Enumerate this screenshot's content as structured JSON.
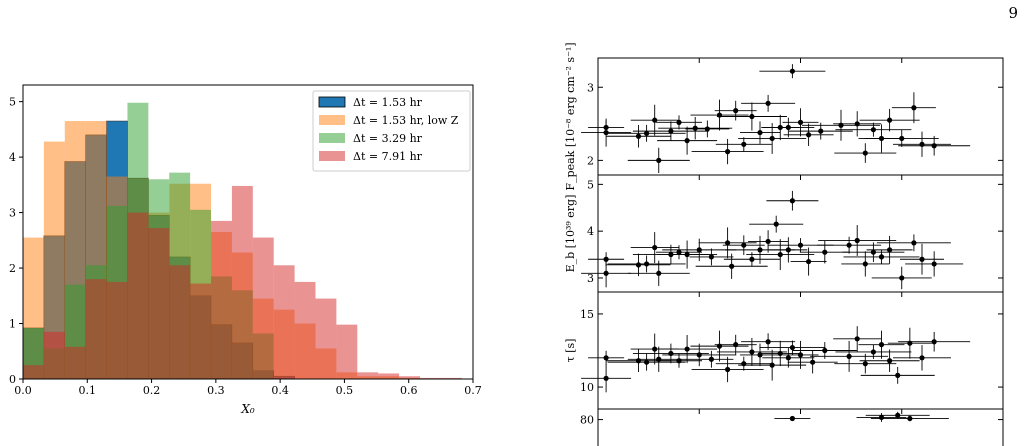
{
  "page_number": "9",
  "chart_data": [
    {
      "type": "histogram",
      "xlabel": "X₀",
      "ylabel": "",
      "xlim": [
        0.0,
        0.7
      ],
      "ylim": [
        0,
        5.3
      ],
      "xticks": [
        0.0,
        0.1,
        0.2,
        0.3,
        0.4,
        0.5,
        0.6,
        0.7
      ],
      "yticks": [
        0,
        1,
        2,
        3,
        4,
        5
      ],
      "bin_width": 0.0325,
      "legend_position": "top-right",
      "series": [
        {
          "name": "Δt = 1.53 hr",
          "color": "#1f77b4",
          "alpha": 1.0,
          "edges": [
            0.0,
            0.0325,
            0.065,
            0.0975,
            0.13,
            0.1625,
            0.195,
            0.2275,
            0.26,
            0.2925,
            0.325,
            0.3575,
            0.39,
            0.4225
          ],
          "values": [
            0.92,
            2.58,
            3.92,
            4.4,
            4.65,
            3.62,
            2.95,
            2.2,
            1.5,
            0.98,
            0.65,
            0.15,
            0.05
          ]
        },
        {
          "name": "Δt = 1.53 hr, low Z",
          "color": "#ff7f0e",
          "alpha": 0.5,
          "edges": [
            0.0,
            0.0325,
            0.065,
            0.0975,
            0.13,
            0.1625,
            0.195,
            0.2275,
            0.26,
            0.2925,
            0.325,
            0.3575,
            0.39,
            0.4225,
            0.455,
            0.4875,
            0.52,
            0.5525,
            0.585,
            0.6175
          ],
          "values": [
            2.55,
            4.28,
            4.65,
            4.65,
            3.65,
            3.62,
            3.0,
            3.52,
            3.52,
            2.65,
            2.28,
            1.45,
            1.25,
            1.0,
            0.55,
            0.12,
            0.05,
            0.05,
            0.02
          ]
        },
        {
          "name": "Δt = 3.29 hr",
          "color": "#2ca02c",
          "alpha": 0.5,
          "edges": [
            0.0,
            0.0325,
            0.065,
            0.0975,
            0.13,
            0.1625,
            0.195,
            0.2275,
            0.26,
            0.2925,
            0.325,
            0.3575,
            0.39
          ],
          "values": [
            0.92,
            0.55,
            1.7,
            2.05,
            3.12,
            4.98,
            3.6,
            3.72,
            3.05,
            1.85,
            1.6,
            0.82
          ]
        },
        {
          "name": "Δt = 7.91 hr",
          "color": "#d62728",
          "alpha": 0.5,
          "edges": [
            0.0,
            0.0325,
            0.065,
            0.0975,
            0.13,
            0.1625,
            0.195,
            0.2275,
            0.26,
            0.2925,
            0.325,
            0.3575,
            0.39,
            0.4225,
            0.455,
            0.4875,
            0.52,
            0.5525,
            0.585,
            0.6175,
            0.65,
            0.6825
          ],
          "values": [
            0.25,
            0.85,
            0.58,
            1.8,
            1.75,
            3.0,
            2.72,
            2.05,
            1.72,
            2.85,
            3.48,
            2.55,
            2.05,
            1.75,
            1.45,
            0.98,
            0.12,
            0.1,
            0.05,
            0.02,
            0.02
          ]
        }
      ]
    },
    {
      "type": "scatter",
      "error_bars": true,
      "x_label": "",
      "panels": [
        {
          "ylabel": "F_peak [10⁻⁸ erg cm⁻² s⁻¹]",
          "ylim": [
            1.8,
            3.4
          ],
          "yticks": [
            2,
            3
          ],
          "points": [
            {
              "x": 0.02,
              "y": 2.45
            },
            {
              "x": 0.02,
              "y": 2.38
            },
            {
              "x": 0.1,
              "y": 2.33
            },
            {
              "x": 0.12,
              "y": 2.37
            },
            {
              "x": 0.14,
              "y": 2.55
            },
            {
              "x": 0.15,
              "y": 2.0
            },
            {
              "x": 0.18,
              "y": 2.4
            },
            {
              "x": 0.2,
              "y": 2.52
            },
            {
              "x": 0.22,
              "y": 2.27
            },
            {
              "x": 0.24,
              "y": 2.44
            },
            {
              "x": 0.27,
              "y": 2.43
            },
            {
              "x": 0.3,
              "y": 2.62
            },
            {
              "x": 0.32,
              "y": 2.12
            },
            {
              "x": 0.34,
              "y": 2.68
            },
            {
              "x": 0.36,
              "y": 2.22
            },
            {
              "x": 0.38,
              "y": 2.6
            },
            {
              "x": 0.4,
              "y": 2.38
            },
            {
              "x": 0.42,
              "y": 2.78
            },
            {
              "x": 0.43,
              "y": 2.3
            },
            {
              "x": 0.45,
              "y": 2.45
            },
            {
              "x": 0.47,
              "y": 2.45
            },
            {
              "x": 0.48,
              "y": 3.22
            },
            {
              "x": 0.5,
              "y": 2.52
            },
            {
              "x": 0.52,
              "y": 2.35
            },
            {
              "x": 0.55,
              "y": 2.4
            },
            {
              "x": 0.6,
              "y": 2.48
            },
            {
              "x": 0.64,
              "y": 2.5
            },
            {
              "x": 0.66,
              "y": 2.1
            },
            {
              "x": 0.68,
              "y": 2.42
            },
            {
              "x": 0.7,
              "y": 2.3
            },
            {
              "x": 0.72,
              "y": 2.55
            },
            {
              "x": 0.75,
              "y": 2.3
            },
            {
              "x": 0.78,
              "y": 2.72
            },
            {
              "x": 0.8,
              "y": 2.22
            },
            {
              "x": 0.83,
              "y": 2.2
            }
          ]
        },
        {
          "ylabel": "E_b [10³⁹ erg]",
          "ylim": [
            2.7,
            5.2
          ],
          "yticks": [
            3,
            4,
            5
          ],
          "points": [
            {
              "x": 0.02,
              "y": 3.4
            },
            {
              "x": 0.02,
              "y": 3.1
            },
            {
              "x": 0.1,
              "y": 3.28
            },
            {
              "x": 0.12,
              "y": 3.3
            },
            {
              "x": 0.14,
              "y": 3.65
            },
            {
              "x": 0.15,
              "y": 3.1
            },
            {
              "x": 0.18,
              "y": 3.5
            },
            {
              "x": 0.2,
              "y": 3.55
            },
            {
              "x": 0.22,
              "y": 3.5
            },
            {
              "x": 0.25,
              "y": 3.6
            },
            {
              "x": 0.28,
              "y": 3.45
            },
            {
              "x": 0.32,
              "y": 3.75
            },
            {
              "x": 0.33,
              "y": 3.25
            },
            {
              "x": 0.36,
              "y": 3.7
            },
            {
              "x": 0.38,
              "y": 3.4
            },
            {
              "x": 0.4,
              "y": 3.6
            },
            {
              "x": 0.42,
              "y": 3.78
            },
            {
              "x": 0.44,
              "y": 4.15
            },
            {
              "x": 0.45,
              "y": 3.5
            },
            {
              "x": 0.47,
              "y": 3.6
            },
            {
              "x": 0.48,
              "y": 4.65
            },
            {
              "x": 0.5,
              "y": 3.7
            },
            {
              "x": 0.52,
              "y": 3.35
            },
            {
              "x": 0.56,
              "y": 3.55
            },
            {
              "x": 0.62,
              "y": 3.7
            },
            {
              "x": 0.64,
              "y": 3.8
            },
            {
              "x": 0.66,
              "y": 3.3
            },
            {
              "x": 0.68,
              "y": 3.55
            },
            {
              "x": 0.7,
              "y": 3.45
            },
            {
              "x": 0.72,
              "y": 3.6
            },
            {
              "x": 0.75,
              "y": 3.0
            },
            {
              "x": 0.78,
              "y": 3.75
            },
            {
              "x": 0.8,
              "y": 3.4
            },
            {
              "x": 0.83,
              "y": 3.3
            }
          ]
        },
        {
          "ylabel": "τ [s]",
          "ylim": [
            8.5,
            16.5
          ],
          "yticks": [
            10,
            15
          ],
          "points": [
            {
              "x": 0.02,
              "y": 12.0
            },
            {
              "x": 0.02,
              "y": 10.6
            },
            {
              "x": 0.1,
              "y": 11.8
            },
            {
              "x": 0.12,
              "y": 11.7
            },
            {
              "x": 0.14,
              "y": 12.6
            },
            {
              "x": 0.15,
              "y": 11.9
            },
            {
              "x": 0.18,
              "y": 12.3
            },
            {
              "x": 0.2,
              "y": 11.8
            },
            {
              "x": 0.22,
              "y": 12.6
            },
            {
              "x": 0.25,
              "y": 12.2
            },
            {
              "x": 0.28,
              "y": 11.9
            },
            {
              "x": 0.3,
              "y": 12.8
            },
            {
              "x": 0.32,
              "y": 11.2
            },
            {
              "x": 0.34,
              "y": 12.9
            },
            {
              "x": 0.36,
              "y": 11.6
            },
            {
              "x": 0.38,
              "y": 12.4
            },
            {
              "x": 0.4,
              "y": 12.2
            },
            {
              "x": 0.42,
              "y": 13.1
            },
            {
              "x": 0.43,
              "y": 11.5
            },
            {
              "x": 0.45,
              "y": 12.3
            },
            {
              "x": 0.47,
              "y": 12.0
            },
            {
              "x": 0.48,
              "y": 12.7
            },
            {
              "x": 0.5,
              "y": 12.2
            },
            {
              "x": 0.53,
              "y": 11.7
            },
            {
              "x": 0.56,
              "y": 12.5
            },
            {
              "x": 0.62,
              "y": 12.1
            },
            {
              "x": 0.64,
              "y": 13.3
            },
            {
              "x": 0.66,
              "y": 11.6
            },
            {
              "x": 0.68,
              "y": 12.4
            },
            {
              "x": 0.7,
              "y": 12.9
            },
            {
              "x": 0.72,
              "y": 11.8
            },
            {
              "x": 0.74,
              "y": 10.8
            },
            {
              "x": 0.77,
              "y": 13.0
            },
            {
              "x": 0.8,
              "y": 12.0
            },
            {
              "x": 0.83,
              "y": 13.1
            }
          ]
        },
        {
          "ylabel": "",
          "ylim": [
            55,
            90
          ],
          "yticks": [
            80
          ],
          "points": [
            {
              "x": 0.48,
              "y": 81
            },
            {
              "x": 0.7,
              "y": 82
            },
            {
              "x": 0.74,
              "y": 84
            },
            {
              "x": 0.77,
              "y": 81
            }
          ]
        }
      ]
    }
  ]
}
